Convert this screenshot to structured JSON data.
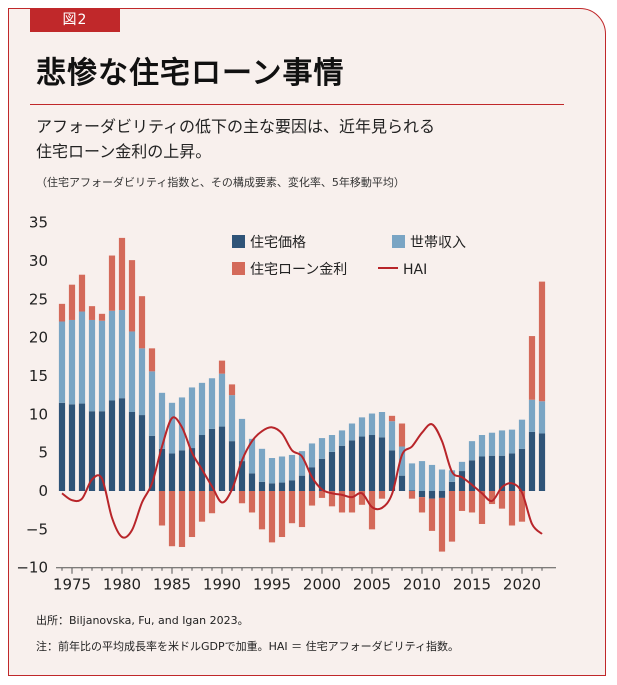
{
  "figure_label": "図2",
  "title": "悲惨な住宅ローン事情",
  "subtitle_line1": "アフォーダビリティの低下の主な要因は、近年見られる",
  "subtitle_line2": "住宅ローン金利の上昇。",
  "note": "（住宅アフォーダビリティ指数と、その構成要素、変化率、5年移動平均）",
  "source": "出所：Biljanovska, Fu, and Igan 2023。",
  "footnote": "注：前年比の平均成長率を米ドルGDPで加重。HAI ＝ 住宅アフォーダビリティ指数。",
  "colors": {
    "house_price": "#2f5478",
    "income": "#7aa5c4",
    "mortgage": "#d46a5a",
    "hai": "#b8252a",
    "accent": "#c0282a",
    "background": "#f8f0ed"
  },
  "chart_data": {
    "type": "bar",
    "stacked": true,
    "title": "",
    "xlabel": "",
    "ylabel": "",
    "ylim": [
      -10,
      35
    ],
    "yticks": [
      "35",
      "30",
      "25",
      "20",
      "15",
      "10",
      "5",
      "0",
      "−5",
      "−10"
    ],
    "xticks": [
      "1975",
      "1980",
      "1985",
      "1990",
      "1995",
      "2000",
      "2005",
      "2010",
      "2015",
      "2020"
    ],
    "x": [
      1974,
      1975,
      1976,
      1977,
      1978,
      1979,
      1980,
      1981,
      1982,
      1983,
      1984,
      1985,
      1986,
      1987,
      1988,
      1989,
      1990,
      1991,
      1992,
      1993,
      1994,
      1995,
      1996,
      1997,
      1998,
      1999,
      2000,
      2001,
      2002,
      2003,
      2004,
      2005,
      2006,
      2007,
      2008,
      2009,
      2010,
      2011,
      2012,
      2013,
      2014,
      2015,
      2016,
      2017,
      2018,
      2019,
      2020,
      2021,
      2022
    ],
    "series": [
      {
        "name": "住宅価格",
        "values": [
          11.5,
          11.3,
          11.4,
          10.4,
          10.4,
          11.8,
          12.1,
          10.3,
          9.9,
          7.2,
          5.5,
          4.9,
          5.3,
          5.6,
          7.3,
          8.1,
          8.4,
          6.5,
          3.9,
          2.3,
          1.2,
          1.0,
          1.1,
          1.4,
          2.0,
          3.1,
          4.2,
          5.1,
          5.9,
          6.6,
          7.1,
          7.3,
          7.0,
          5.3,
          2.0,
          0.1,
          -0.8,
          -1.0,
          -0.9,
          1.2,
          2.6,
          4.0,
          4.5,
          4.6,
          4.6,
          4.9,
          5.5,
          7.7,
          7.5
        ]
      },
      {
        "name": "世帯収入",
        "values": [
          10.6,
          11.0,
          12.0,
          11.9,
          11.8,
          11.7,
          11.5,
          10.5,
          8.7,
          8.4,
          7.3,
          6.6,
          6.9,
          7.9,
          6.8,
          6.6,
          6.9,
          6.0,
          5.5,
          4.5,
          4.3,
          3.3,
          3.4,
          3.3,
          3.2,
          3.1,
          2.7,
          2.2,
          2.0,
          2.2,
          2.5,
          2.8,
          3.3,
          3.8,
          3.8,
          3.5,
          3.9,
          3.4,
          2.8,
          1.5,
          1.2,
          2.5,
          2.8,
          3.0,
          3.3,
          3.1,
          3.8,
          4.2,
          4.2
        ]
      },
      {
        "name": "住宅ローン金利",
        "values": [
          2.3,
          4.6,
          4.8,
          1.8,
          0.9,
          7.2,
          9.4,
          9.3,
          6.8,
          3.0,
          -4.5,
          -7.2,
          -7.3,
          -6.0,
          -4.0,
          -2.9,
          1.7,
          1.4,
          -1.6,
          -2.8,
          -5.0,
          -6.7,
          -6.0,
          -4.2,
          -4.7,
          -1.9,
          -0.9,
          -2.0,
          -2.8,
          -2.8,
          -1.8,
          -5.0,
          -1.0,
          0.7,
          3.0,
          -1.0,
          -2.0,
          -4.2,
          -7.0,
          -6.6,
          -2.6,
          -2.8,
          -4.3,
          -1.7,
          -2.3,
          -4.5,
          -4.0,
          8.3,
          15.6
        ]
      },
      {
        "name": "HAI",
        "values": [
          -0.3,
          -1.2,
          -1.0,
          1.5,
          1.6,
          -3.5,
          -6.0,
          -5.1,
          -1.5,
          1.0,
          5.8,
          9.5,
          8.3,
          5.0,
          2.8,
          0.6,
          -1.5,
          0.2,
          4.0,
          6.5,
          7.8,
          8.3,
          7.5,
          5.3,
          4.5,
          1.8,
          0.2,
          -0.3,
          -0.5,
          -0.8,
          -0.3,
          -2.1,
          -2.2,
          -0.4,
          4.7,
          5.8,
          7.6,
          8.7,
          6.5,
          2.5,
          1.8,
          0.8,
          -0.3,
          -1.3,
          0.5,
          1.0,
          -0.2,
          -4.3,
          -5.6
        ]
      }
    ],
    "legend": [
      "住宅価格",
      "世帯収入",
      "住宅ローン金利",
      "HAI"
    ],
    "legend_position": "top-center"
  }
}
